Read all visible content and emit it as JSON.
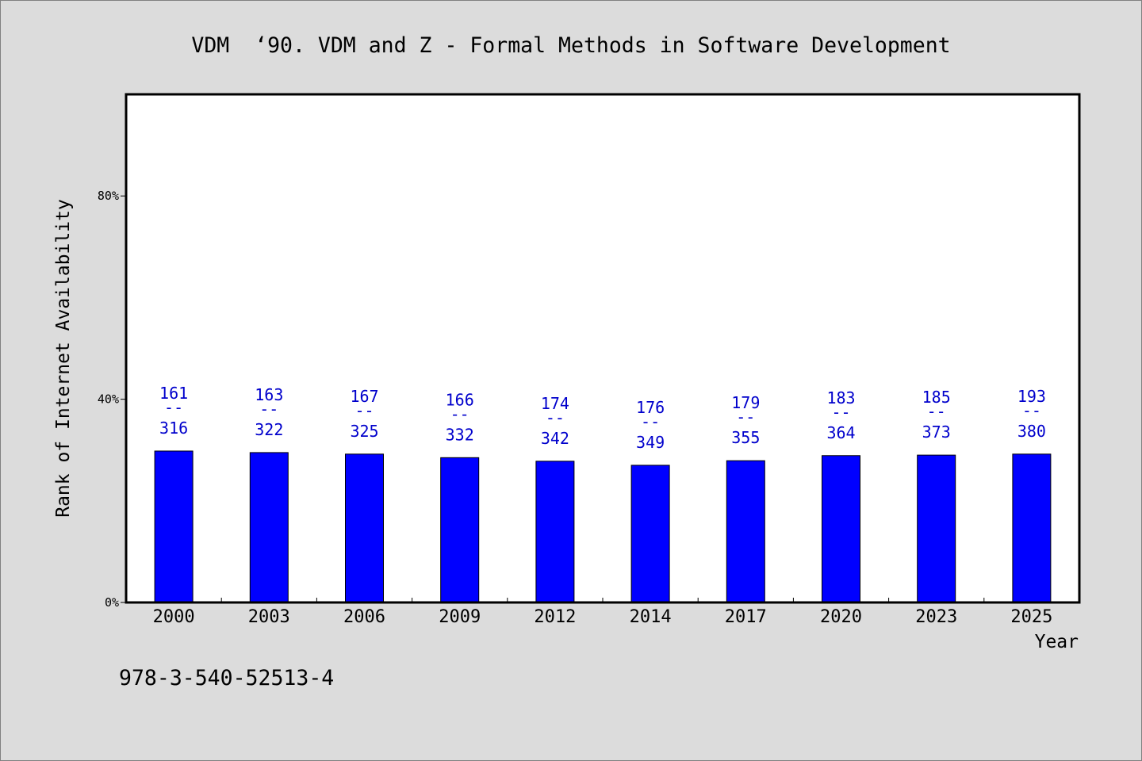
{
  "chart_data": {
    "type": "bar",
    "title": "VDM  ‘90. VDM and Z - Formal Methods in Software Development",
    "xlabel": "Year",
    "ylabel": "Rank of Internet Availability",
    "categories": [
      "2000",
      "2003",
      "2006",
      "2009",
      "2012",
      "2014",
      "2017",
      "2020",
      "2023",
      "2025"
    ],
    "values": [
      29.8,
      29.5,
      29.2,
      28.5,
      27.8,
      27.0,
      27.9,
      28.9,
      29.0,
      29.2
    ],
    "ylim": [
      0,
      100
    ],
    "yticks": [
      {
        "value": 0,
        "label": "0%"
      },
      {
        "value": 40,
        "label": "40%"
      },
      {
        "value": 80,
        "label": "80%"
      }
    ],
    "data_labels": [
      {
        "upper": "161",
        "lower": "316"
      },
      {
        "upper": "163",
        "lower": "322"
      },
      {
        "upper": "167",
        "lower": "325"
      },
      {
        "upper": "166",
        "lower": "332"
      },
      {
        "upper": "174",
        "lower": "342"
      },
      {
        "upper": "176",
        "lower": "349"
      },
      {
        "upper": "179",
        "lower": "355"
      },
      {
        "upper": "183",
        "lower": "364"
      },
      {
        "upper": "185",
        "lower": "373"
      },
      {
        "upper": "193",
        "lower": "380"
      }
    ],
    "data_label_separator": "--",
    "bar_color": "#0000ff",
    "data_label_color": "#0000cc",
    "grid": false,
    "legend": "none"
  },
  "footer": {
    "code": "978-3-540-52513-4"
  },
  "colors": {
    "page_background": "#dcdcdc",
    "plot_background": "#ffffff",
    "axis": "#000000"
  }
}
